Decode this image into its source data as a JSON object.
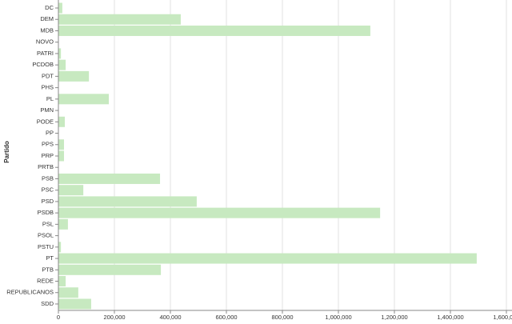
{
  "chart_data": {
    "type": "hbar",
    "y_label": "Partido",
    "categories": [
      "DC",
      "DEM",
      "MDB",
      "NOVO",
      "PATRI",
      "PCDOB",
      "PDT",
      "PHS",
      "PL",
      "PMN",
      "PODE",
      "PP",
      "PPS",
      "PRP",
      "PRTB",
      "PSB",
      "PSC",
      "PSD",
      "PSDB",
      "PSL",
      "PSOL",
      "PSTU",
      "PT",
      "PTB",
      "REDE",
      "REPUBLICANOS",
      "SDD"
    ],
    "values": [
      14000,
      437000,
      1114000,
      0,
      9000,
      26000,
      109000,
      0,
      180000,
      0,
      23000,
      0,
      20000,
      20000,
      0,
      363000,
      89000,
      494000,
      1149000,
      34000,
      0,
      9000,
      1494000,
      366000,
      26000,
      71000,
      117000
    ],
    "color": "#c7e9c0",
    "xlim": [
      0,
      1600000
    ],
    "xticks": [
      0,
      {
        "value": 200000,
        "label": "200,000"
      },
      {
        "value": 400000,
        "label": "400,000"
      },
      {
        "value": 600000,
        "label": "600,000"
      },
      {
        "value": 800000,
        "label": "800,000"
      },
      {
        "value": 1000000,
        "label": "1,000,000"
      },
      {
        "value": 1200000,
        "label": "1,200,000"
      },
      {
        "value": 1400000,
        "label": "1,400,000"
      },
      {
        "value": 1600000,
        "label": "1,600,000"
      }
    ],
    "grid": true
  }
}
